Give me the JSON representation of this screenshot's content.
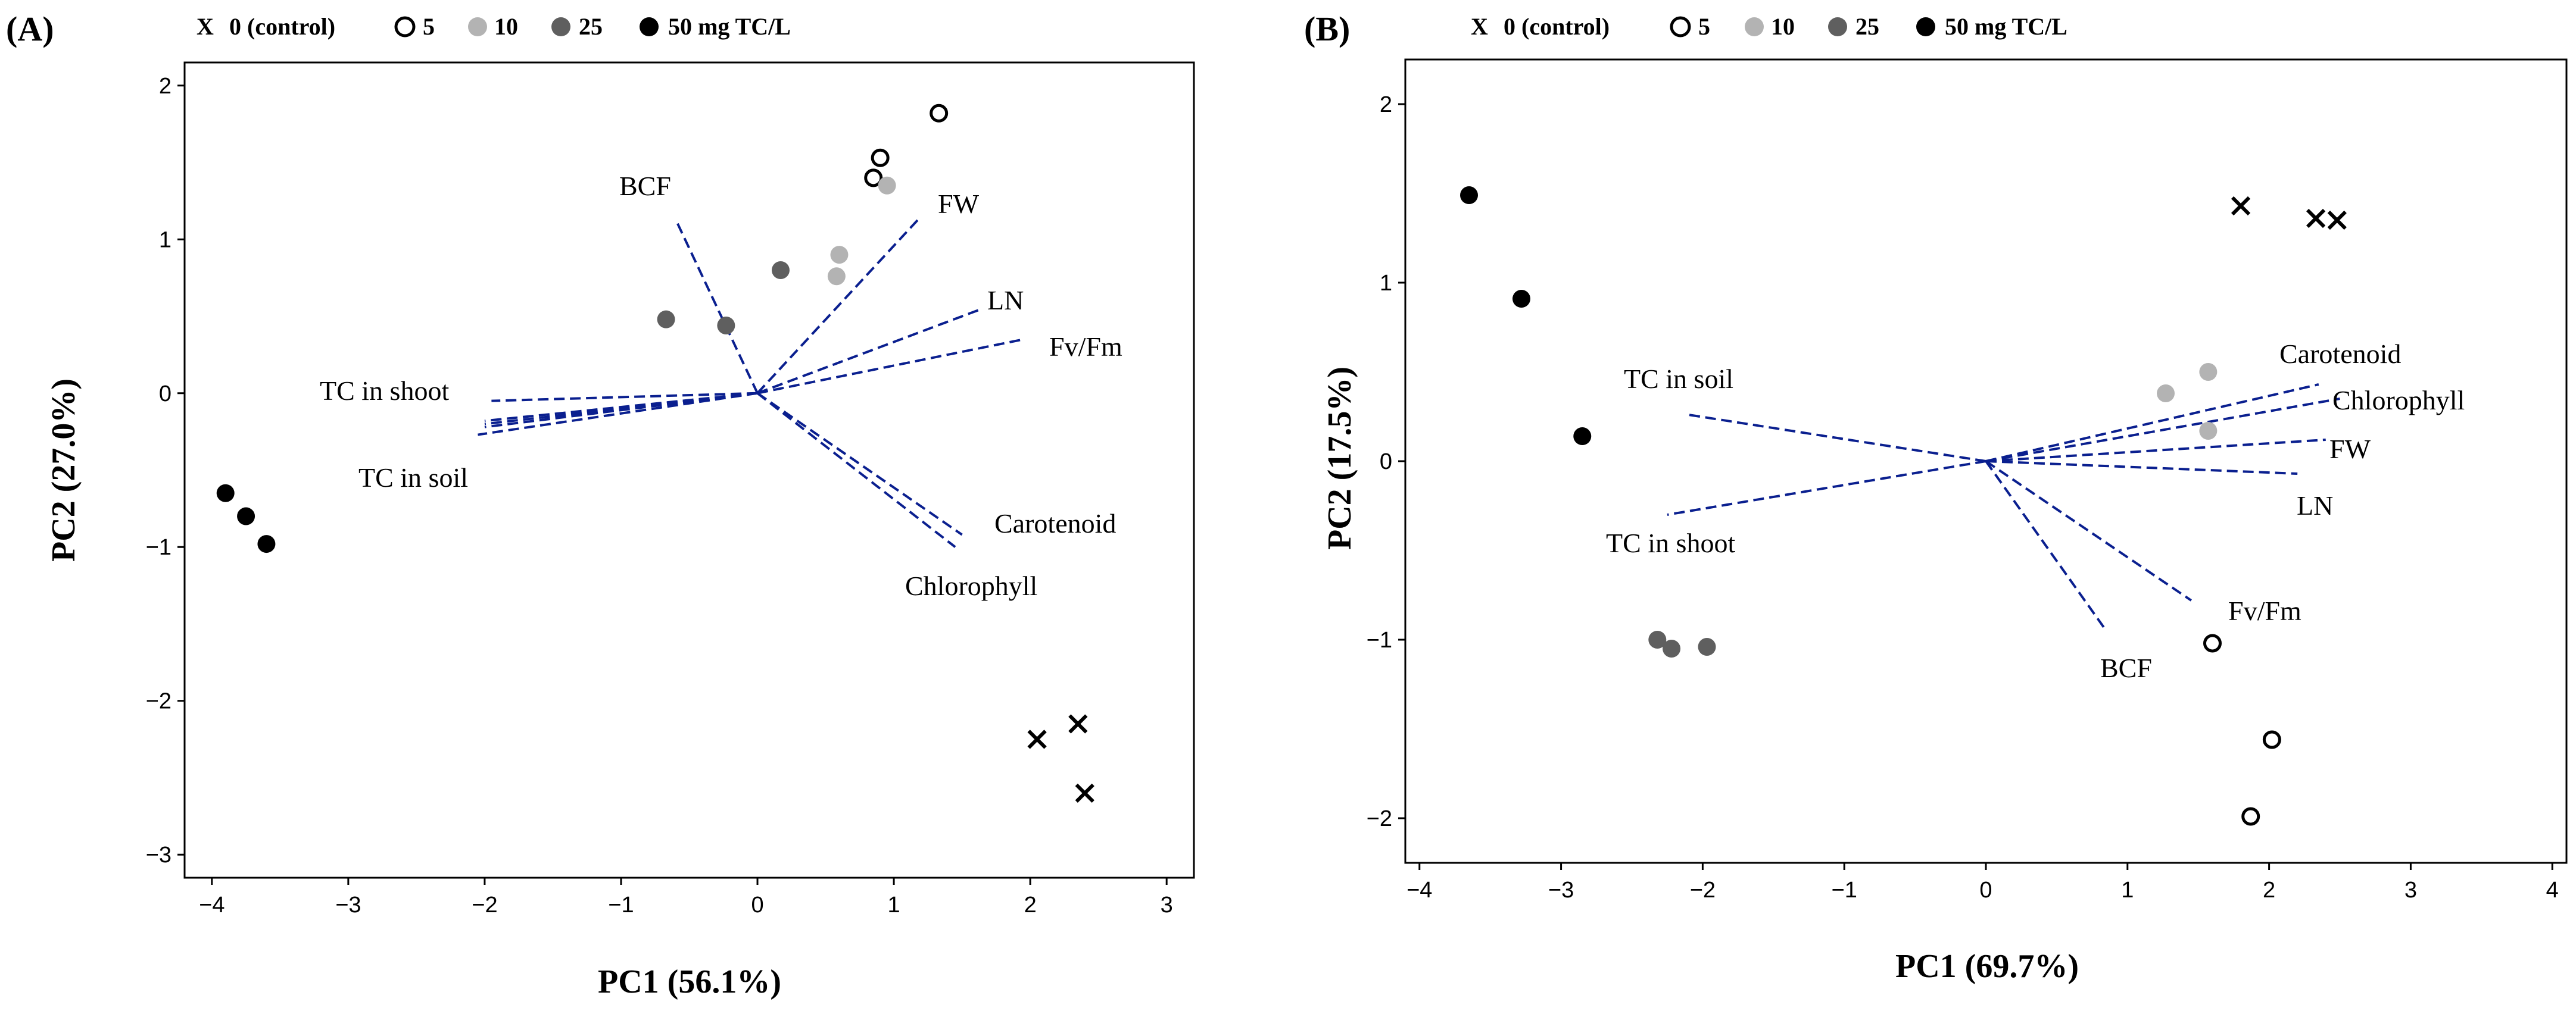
{
  "legend": {
    "x_marker_label": "X",
    "items": [
      {
        "label": "0 (control)",
        "marker": "x"
      },
      {
        "label": "5",
        "marker": "open"
      },
      {
        "label": "10",
        "marker": "light"
      },
      {
        "label": "25",
        "marker": "dark"
      },
      {
        "label": "50 mg TC/L",
        "marker": "black"
      }
    ]
  },
  "colors": {
    "vector": "#0a1f8f",
    "open_fill": "#ffffff",
    "light": "#b3b3b3",
    "dark": "#5f5f5f",
    "black": "#000000"
  },
  "chart_data": [
    {
      "type": "scatter",
      "panel": "(A)",
      "xlabel": "PC1 (56.1%)",
      "ylabel": "PC2 (27.0%)",
      "xlim": [
        -4.2,
        3.2
      ],
      "ylim": [
        -3.15,
        2.15
      ],
      "xticks": [
        -4,
        -3,
        -2,
        -1,
        0,
        1,
        2,
        3
      ],
      "yticks": [
        -3,
        -2,
        -1,
        0,
        1,
        2
      ],
      "points": [
        {
          "group": "0 (control)",
          "marker": "x",
          "x": 2.05,
          "y": -2.25
        },
        {
          "group": "0 (control)",
          "marker": "x",
          "x": 2.35,
          "y": -2.15
        },
        {
          "group": "0 (control)",
          "marker": "x",
          "x": 2.4,
          "y": -2.6
        },
        {
          "group": "5",
          "marker": "open",
          "x": 1.33,
          "y": 1.82
        },
        {
          "group": "5",
          "marker": "open",
          "x": 0.9,
          "y": 1.53
        },
        {
          "group": "5",
          "marker": "open",
          "x": 0.85,
          "y": 1.4
        },
        {
          "group": "10",
          "marker": "light",
          "x": 0.95,
          "y": 1.35
        },
        {
          "group": "10",
          "marker": "light",
          "x": 0.6,
          "y": 0.9
        },
        {
          "group": "10",
          "marker": "light",
          "x": 0.58,
          "y": 0.76
        },
        {
          "group": "25",
          "marker": "dark",
          "x": 0.17,
          "y": 0.8
        },
        {
          "group": "25",
          "marker": "dark",
          "x": -0.67,
          "y": 0.48
        },
        {
          "group": "25",
          "marker": "dark",
          "x": -0.23,
          "y": 0.44
        },
        {
          "group": "50 mg TC/L",
          "marker": "black",
          "x": -3.9,
          "y": -0.65
        },
        {
          "group": "50 mg TC/L",
          "marker": "black",
          "x": -3.75,
          "y": -0.8
        },
        {
          "group": "50 mg TC/L",
          "marker": "black",
          "x": -3.6,
          "y": -0.98
        }
      ],
      "loadings": [
        {
          "name": "BCF",
          "x": -0.6,
          "y": 1.13
        },
        {
          "name": "FW",
          "x": 1.2,
          "y": 1.15
        },
        {
          "name": "LN",
          "x": 1.65,
          "y": 0.55
        },
        {
          "name": "Fv/Fm",
          "x": 1.95,
          "y": 0.35
        },
        {
          "name": "TC in shoot",
          "x": -1.95,
          "y": -0.05
        },
        {
          "name": "TC in soil",
          "x": -2.05,
          "y": -0.27
        },
        {
          "name": "Carotenoid",
          "x": 1.5,
          "y": -0.92
        },
        {
          "name": "Chlorophyll",
          "x": 1.45,
          "y": -1.0
        }
      ],
      "loading_labels": {
        "BCF": "BCF",
        "FW": "FW",
        "LN": "LN",
        "Fv/Fm": "Fv/Fm",
        "TC in shoot": "TC in shoot",
        "TC in soil": "TC in soil",
        "Carotenoid": "Carotenoid",
        "Chlorophyll": "Chlorophyll"
      }
    },
    {
      "type": "scatter",
      "panel": "(B)",
      "xlabel": "PC1 (69.7%)",
      "ylabel": "PC2 (17.5%)",
      "xlim": [
        -4.1,
        4.1
      ],
      "ylim": [
        -2.25,
        2.25
      ],
      "xticks": [
        -4,
        -3,
        -2,
        -1,
        0,
        1,
        2,
        3,
        4
      ],
      "yticks": [
        -2,
        -1,
        0,
        1,
        2
      ],
      "points": [
        {
          "group": "0 (control)",
          "marker": "x",
          "x": 1.8,
          "y": 1.43
        },
        {
          "group": "0 (control)",
          "marker": "x",
          "x": 2.33,
          "y": 1.36
        },
        {
          "group": "0 (control)",
          "marker": "x",
          "x": 2.48,
          "y": 1.35
        },
        {
          "group": "5",
          "marker": "open",
          "x": 1.6,
          "y": -1.02
        },
        {
          "group": "5",
          "marker": "open",
          "x": 2.02,
          "y": -1.56
        },
        {
          "group": "5",
          "marker": "open",
          "x": 1.87,
          "y": -1.99
        },
        {
          "group": "10",
          "marker": "light",
          "x": 1.27,
          "y": 0.38
        },
        {
          "group": "10",
          "marker": "light",
          "x": 1.57,
          "y": 0.5
        },
        {
          "group": "10",
          "marker": "light",
          "x": 1.57,
          "y": 0.17
        },
        {
          "group": "25",
          "marker": "dark",
          "x": -2.32,
          "y": -1.0
        },
        {
          "group": "25",
          "marker": "dark",
          "x": -2.22,
          "y": -1.05
        },
        {
          "group": "25",
          "marker": "dark",
          "x": -1.97,
          "y": -1.04
        },
        {
          "group": "50 mg TC/L",
          "marker": "black",
          "x": -3.65,
          "y": 1.49
        },
        {
          "group": "50 mg TC/L",
          "marker": "black",
          "x": -3.28,
          "y": 0.91
        },
        {
          "group": "50 mg TC/L",
          "marker": "black",
          "x": -2.85,
          "y": 0.14
        }
      ],
      "loadings": [
        {
          "name": "TC in soil",
          "x": -2.1,
          "y": 0.26
        },
        {
          "name": "TC in shoot",
          "x": -2.25,
          "y": -0.3
        },
        {
          "name": "Carotenoid",
          "x": 2.35,
          "y": 0.43
        },
        {
          "name": "Chlorophyll",
          "x": 2.5,
          "y": 0.35
        },
        {
          "name": "FW",
          "x": 2.4,
          "y": 0.12
        },
        {
          "name": "LN",
          "x": 2.2,
          "y": -0.07
        },
        {
          "name": "Fv/Fm",
          "x": 1.45,
          "y": -0.78
        },
        {
          "name": "BCF",
          "x": 0.85,
          "y": -0.95
        }
      ],
      "loading_labels": {
        "TC in soil": "TC in soil",
        "TC in shoot": "TC in shoot",
        "Carotenoid": "Carotenoid",
        "Chlorophyll": "Chlorophyll",
        "FW": "FW",
        "LN": "LN",
        "Fv/Fm": "Fv/Fm",
        "BCF": "BCF"
      }
    }
  ]
}
